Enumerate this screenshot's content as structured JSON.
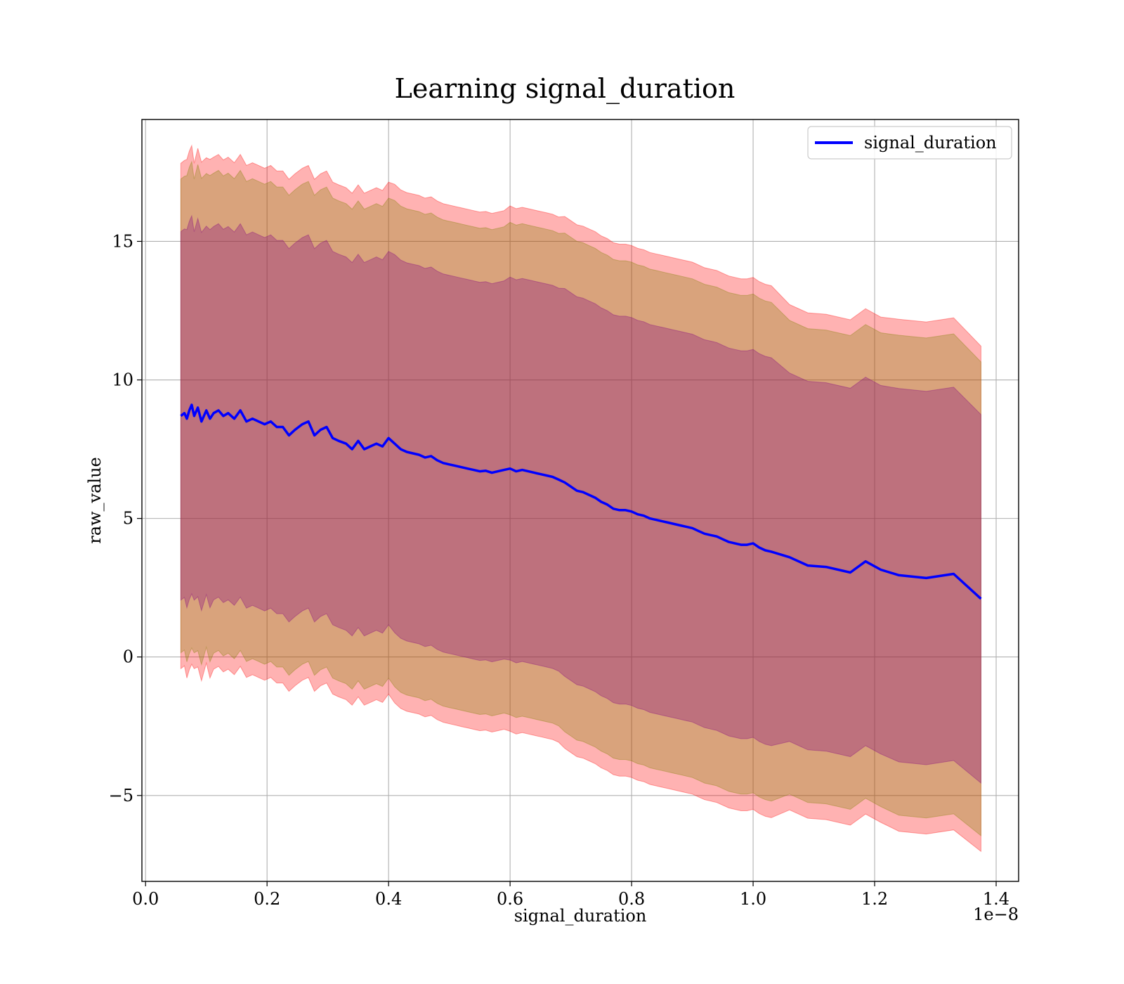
{
  "chart_data": {
    "type": "line",
    "title": "Learning signal_duration",
    "xlabel": "signal_duration",
    "ylabel": "raw_value",
    "x_offset_text": "1e−8",
    "xlim": [
      -0.006,
      1.437
    ],
    "ylim": [
      -8.1,
      19.4
    ],
    "grid": true,
    "legend_position": "top-right",
    "x_ticks": [
      0.0,
      0.2,
      0.4,
      0.6,
      0.8,
      1.0,
      1.2,
      1.4
    ],
    "x_tick_labels": [
      "0.0",
      "0.2",
      "0.4",
      "0.6",
      "0.8",
      "1.0",
      "1.2",
      "1.4"
    ],
    "y_ticks": [
      -5,
      0,
      5,
      10,
      15
    ],
    "y_tick_labels": [
      "−5",
      "0",
      "5",
      "10",
      "15"
    ],
    "series": [
      {
        "name": "signal_duration",
        "color": "#0000ff",
        "x": [
          0.058,
          0.064,
          0.068,
          0.072,
          0.076,
          0.08,
          0.086,
          0.092,
          0.1,
          0.106,
          0.112,
          0.12,
          0.128,
          0.136,
          0.146,
          0.156,
          0.166,
          0.176,
          0.186,
          0.196,
          0.206,
          0.216,
          0.226,
          0.236,
          0.246,
          0.258,
          0.268,
          0.278,
          0.288,
          0.298,
          0.308,
          0.318,
          0.33,
          0.34,
          0.35,
          0.36,
          0.37,
          0.38,
          0.39,
          0.4,
          0.41,
          0.42,
          0.43,
          0.44,
          0.45,
          0.46,
          0.47,
          0.48,
          0.49,
          0.5,
          0.51,
          0.52,
          0.53,
          0.54,
          0.55,
          0.56,
          0.57,
          0.58,
          0.59,
          0.6,
          0.61,
          0.62,
          0.63,
          0.64,
          0.65,
          0.66,
          0.67,
          0.68,
          0.69,
          0.7,
          0.71,
          0.72,
          0.73,
          0.74,
          0.75,
          0.76,
          0.77,
          0.78,
          0.79,
          0.8,
          0.81,
          0.82,
          0.83,
          0.84,
          0.85,
          0.86,
          0.87,
          0.88,
          0.89,
          0.9,
          0.91,
          0.92,
          0.93,
          0.94,
          0.95,
          0.96,
          0.97,
          0.98,
          0.99,
          1.0,
          1.01,
          1.02,
          1.03,
          1.06,
          1.09,
          1.12,
          1.16,
          1.185,
          1.21,
          1.24,
          1.285,
          1.33,
          1.375
        ],
        "y": [
          8.7,
          8.8,
          8.6,
          8.9,
          9.1,
          8.7,
          9.0,
          8.5,
          8.9,
          8.6,
          8.8,
          8.9,
          8.7,
          8.8,
          8.6,
          8.9,
          8.5,
          8.6,
          8.5,
          8.4,
          8.5,
          8.3,
          8.3,
          8.0,
          8.2,
          8.4,
          8.5,
          8.0,
          8.2,
          8.3,
          7.9,
          7.8,
          7.7,
          7.5,
          7.8,
          7.5,
          7.6,
          7.7,
          7.6,
          7.9,
          7.7,
          7.5,
          7.4,
          7.35,
          7.3,
          7.2,
          7.25,
          7.1,
          7.0,
          6.95,
          6.9,
          6.85,
          6.8,
          6.75,
          6.7,
          6.72,
          6.65,
          6.7,
          6.75,
          6.8,
          6.7,
          6.75,
          6.7,
          6.65,
          6.6,
          6.55,
          6.5,
          6.4,
          6.3,
          6.15,
          6.0,
          5.95,
          5.85,
          5.75,
          5.6,
          5.5,
          5.35,
          5.3,
          5.3,
          5.25,
          5.15,
          5.1,
          5.0,
          4.95,
          4.9,
          4.85,
          4.8,
          4.75,
          4.7,
          4.65,
          4.55,
          4.45,
          4.4,
          4.35,
          4.25,
          4.15,
          4.1,
          4.05,
          4.05,
          4.1,
          3.95,
          3.85,
          3.8,
          3.6,
          3.3,
          3.25,
          3.05,
          3.45,
          3.15,
          2.95,
          2.85,
          3.0,
          2.1
        ]
      }
    ],
    "bands": [
      {
        "color": "#ff0000",
        "alpha": 0.3,
        "sigma": 2.4
      },
      {
        "color": "#808000",
        "alpha": 0.3,
        "sigma": 2.25
      },
      {
        "color": "#800080",
        "alpha": 0.3,
        "sigma": 1.75
      }
    ],
    "band_std": [
      3.8,
      3.8,
      3.9,
      3.9,
      3.9,
      3.8,
      3.9,
      3.9,
      3.8,
      3.9,
      3.85,
      3.85,
      3.85,
      3.85,
      3.85,
      3.85,
      3.85,
      3.85,
      3.85,
      3.85,
      3.85,
      3.85,
      3.85,
      3.85,
      3.85,
      3.85,
      3.85,
      3.85,
      3.85,
      3.85,
      3.85,
      3.85,
      3.85,
      3.85,
      3.85,
      3.85,
      3.85,
      3.85,
      3.85,
      3.85,
      3.9,
      3.9,
      3.9,
      3.9,
      3.9,
      3.9,
      3.9,
      3.9,
      3.9,
      3.9,
      3.9,
      3.9,
      3.9,
      3.9,
      3.9,
      3.9,
      3.9,
      3.9,
      3.9,
      3.95,
      3.95,
      3.95,
      3.95,
      3.95,
      3.95,
      3.95,
      3.95,
      3.95,
      4.0,
      4.0,
      4.0,
      4.0,
      4.0,
      4.0,
      4.0,
      4.0,
      4.0,
      4.0,
      4.0,
      4.0,
      4.0,
      4.0,
      4.0,
      4.0,
      4.0,
      4.0,
      4.0,
      4.0,
      4.0,
      4.0,
      4.0,
      4.0,
      4.0,
      4.0,
      4.0,
      4.0,
      4.0,
      4.0,
      4.0,
      4.0,
      4.0,
      4.0,
      4.0,
      3.8,
      3.8,
      3.8,
      3.8,
      3.8,
      3.8,
      3.85,
      3.85,
      3.85,
      3.8
    ]
  }
}
